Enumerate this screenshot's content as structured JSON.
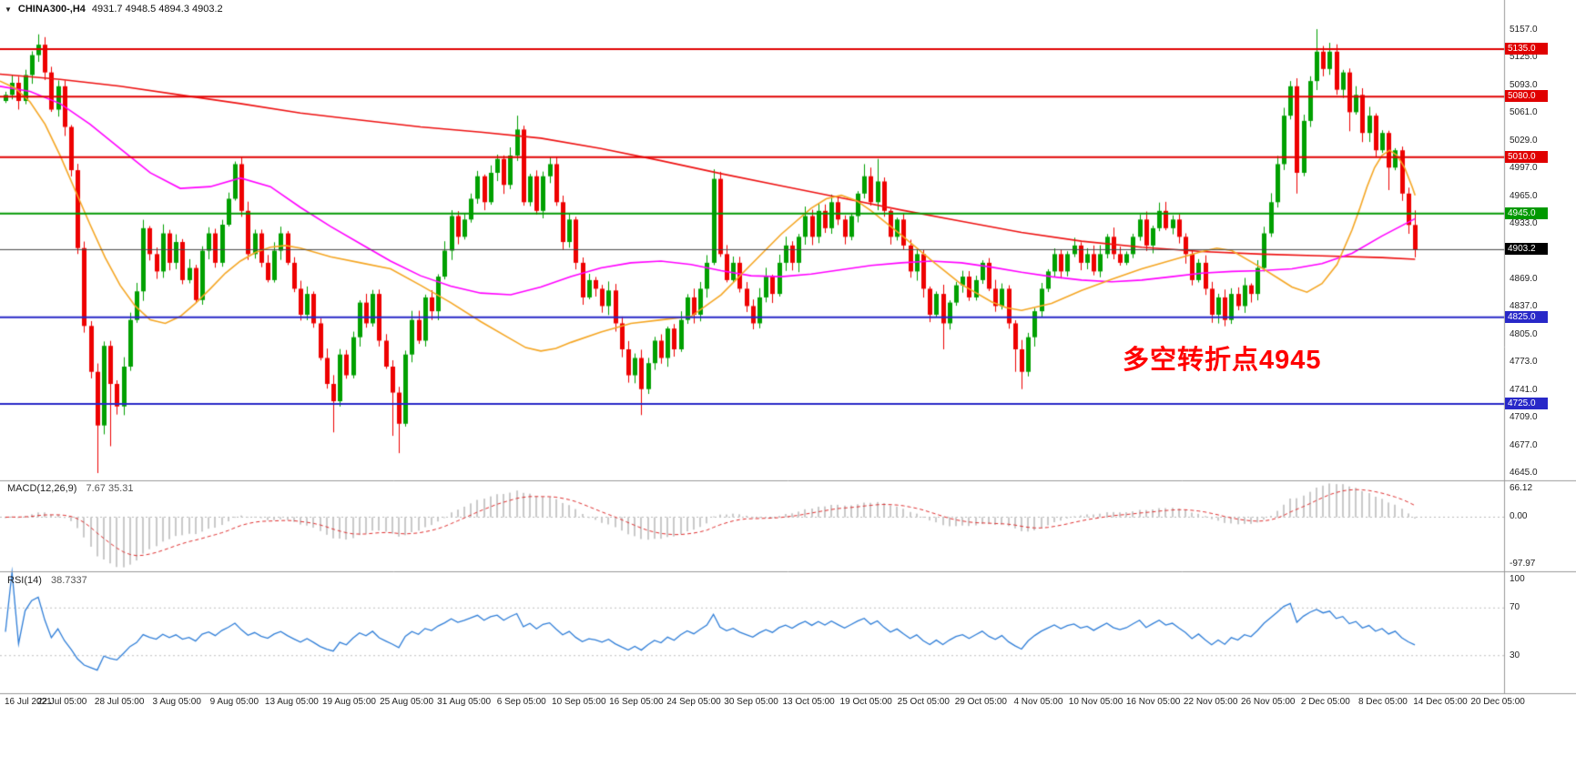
{
  "header": {
    "symbol": "CHINA300-,H4",
    "ohlc": "4931.7 4948.5 4894.3 4903.2"
  },
  "chart_data": {
    "type": "candlestick",
    "symbol": "CHINA300-",
    "timeframe": "H4",
    "current_bar": {
      "open": 4931.7,
      "high": 4948.5,
      "low": 4894.3,
      "close": 4903.2
    },
    "y_axis": {
      "ticks": [
        "5157.0",
        "5125.0",
        "5093.0",
        "5061.0",
        "5029.0",
        "4997.0",
        "4965.0",
        "4933.0",
        "4901.0",
        "4869.0",
        "4837.0",
        "4805.0",
        "4773.0",
        "4741.0",
        "4709.0",
        "4677.0",
        "4645.0"
      ]
    },
    "x_axis": {
      "labels": [
        "16 Jul 2021",
        "22 Jul 05:00",
        "28 Jul 05:00",
        "3 Aug 05:00",
        "9 Aug 05:00",
        "13 Aug 05:00",
        "19 Aug 05:00",
        "25 Aug 05:00",
        "31 Aug 05:00",
        "6 Sep 05:00",
        "10 Sep 05:00",
        "16 Sep 05:00",
        "24 Sep 05:00",
        "30 Sep 05:00",
        "13 Oct 05:00",
        "19 Oct 05:00",
        "25 Oct 05:00",
        "29 Oct 05:00",
        "4 Nov 05:00",
        "10 Nov 05:00",
        "16 Nov 05:00",
        "22 Nov 05:00",
        "26 Nov 05:00",
        "2 Dec 05:00",
        "8 Dec 05:00",
        "14 Dec 05:00",
        "20 Dec 05:00"
      ]
    },
    "horizontal_lines": [
      {
        "value": 5135.0,
        "label": "5135.0",
        "color": "#e00000",
        "type": "resistance"
      },
      {
        "value": 5080.0,
        "label": "5080.0",
        "color": "#e00000",
        "type": "resistance"
      },
      {
        "value": 5010.0,
        "label": "5010.0",
        "color": "#e00000",
        "type": "resistance"
      },
      {
        "value": 4945.0,
        "label": "4945.0",
        "color": "#009900",
        "type": "pivot"
      },
      {
        "value": 4825.0,
        "label": "4825.0",
        "color": "#2828c8",
        "type": "support"
      },
      {
        "value": 4725.0,
        "label": "4725.0",
        "color": "#2828c8",
        "type": "support"
      }
    ],
    "current_price_line": {
      "value": 4903.2,
      "label": "4903.2",
      "line_color": "#444444",
      "badge_color": "#000000"
    },
    "candles": {
      "open_first": 5075,
      "closes": [
        5082,
        5096,
        5075,
        5105,
        5128,
        5140,
        5108,
        5065,
        5092,
        5045,
        4995,
        4905,
        4815,
        4762,
        4700,
        4792,
        4748,
        4722,
        4768,
        4822,
        4855,
        4928,
        4898,
        4878,
        4922,
        4888,
        4912,
        4868,
        4882,
        4845,
        4902,
        4922,
        4888,
        4932,
        4962,
        5002,
        4948,
        4898,
        4922,
        4888,
        4868,
        4902,
        4922,
        4888,
        4858,
        4828,
        4852,
        4818,
        4778,
        4748,
        4728,
        4782,
        4758,
        4802,
        4842,
        4818,
        4852,
        4798,
        4768,
        4738,
        4702,
        4782,
        4822,
        4798,
        4848,
        4832,
        4872,
        4902,
        4942,
        4918,
        4938,
        4962,
        4988,
        4958,
        4992,
        5008,
        4978,
        5012,
        5042,
        4958,
        4988,
        4948,
        4988,
        5002,
        4958,
        4912,
        4938,
        4888,
        4848,
        4868,
        4858,
        4838,
        4856,
        4818,
        4788,
        4758,
        4778,
        4742,
        4772,
        4798,
        4778,
        4812,
        4788,
        4822,
        4848,
        4828,
        4858,
        4888,
        4985,
        4898,
        4868,
        4888,
        4858,
        4838,
        4818,
        4848,
        4872,
        4852,
        4888,
        4908,
        4888,
        4918,
        4942,
        4918,
        4948,
        4928,
        4958,
        4938,
        4918,
        4942,
        4968,
        4988,
        4958,
        4982,
        4948,
        4918,
        4938,
        4908,
        4878,
        4898,
        4858,
        4828,
        4852,
        4818,
        4842,
        4862,
        4872,
        4848,
        4868,
        4888,
        4858,
        4838,
        4858,
        4818,
        4788,
        4762,
        4802,
        4832,
        4858,
        4878,
        4898,
        4878,
        4898,
        4908,
        4888,
        4898,
        4878,
        4898,
        4918,
        4898,
        4888,
        4898,
        4918,
        4938,
        4908,
        4928,
        4948,
        4928,
        4938,
        4918,
        4898,
        4868,
        4888,
        4858,
        4828,
        4848,
        4822,
        4852,
        4838,
        4862,
        4852,
        4882,
        4922,
        4958,
        5002,
        5058,
        5092,
        4992,
        5052,
        5098,
        5132,
        5112,
        5132,
        5088,
        5108,
        5062,
        5082,
        5038,
        5058,
        5018,
        5038,
        4998,
        5018,
        4968,
        4931.7,
        4903.2
      ],
      "wick_overrides": {
        "5": [
          5152,
          null
        ],
        "14": [
          null,
          4645
        ],
        "16": [
          null,
          4676
        ],
        "50": [
          null,
          4692
        ],
        "59": [
          null,
          4688
        ],
        "60": [
          null,
          4668
        ],
        "78": [
          5058,
          null
        ],
        "83": [
          5010,
          null
        ],
        "97": [
          null,
          4712
        ],
        "108": [
          4996,
          null
        ],
        "131": [
          5002,
          null
        ],
        "133": [
          5008,
          null
        ],
        "143": [
          null,
          4788
        ],
        "154": [
          null,
          4762
        ],
        "155": [
          null,
          4742
        ],
        "196": [
          5098,
          null
        ],
        "197": [
          null,
          4968
        ],
        "200": [
          5158,
          null
        ],
        "205": [
          null,
          5040
        ],
        "211": [
          null,
          4972
        ],
        "215": [
          4948.5,
          4894.3
        ]
      }
    },
    "moving_averages": [
      {
        "name": "ma-slow",
        "color": "#ee1111",
        "points": [
          [
            0,
            5106
          ],
          [
            0.04,
            5100
          ],
          [
            0.08,
            5092
          ],
          [
            0.12,
            5082
          ],
          [
            0.16,
            5072
          ],
          [
            0.2,
            5061
          ],
          [
            0.24,
            5053
          ],
          [
            0.28,
            5045
          ],
          [
            0.32,
            5039
          ],
          [
            0.36,
            5032
          ],
          [
            0.4,
            5020
          ],
          [
            0.44,
            5006
          ],
          [
            0.48,
            4991
          ],
          [
            0.52,
            4977
          ],
          [
            0.56,
            4963
          ],
          [
            0.6,
            4949
          ],
          [
            0.64,
            4936
          ],
          [
            0.68,
            4923
          ],
          [
            0.72,
            4913
          ],
          [
            0.76,
            4906
          ],
          [
            0.8,
            4901
          ],
          [
            0.84,
            4898
          ],
          [
            0.88,
            4896
          ],
          [
            0.92,
            4894
          ],
          [
            0.942,
            4892
          ]
        ]
      },
      {
        "name": "ma-medium",
        "color": "#ff00ff",
        "points": [
          [
            0,
            5092
          ],
          [
            0.02,
            5086
          ],
          [
            0.04,
            5072
          ],
          [
            0.06,
            5048
          ],
          [
            0.08,
            5020
          ],
          [
            0.1,
            4992
          ],
          [
            0.12,
            4974
          ],
          [
            0.14,
            4976
          ],
          [
            0.16,
            4986
          ],
          [
            0.18,
            4976
          ],
          [
            0.2,
            4952
          ],
          [
            0.22,
            4930
          ],
          [
            0.24,
            4910
          ],
          [
            0.26,
            4890
          ],
          [
            0.28,
            4873
          ],
          [
            0.3,
            4861
          ],
          [
            0.32,
            4853
          ],
          [
            0.34,
            4851
          ],
          [
            0.36,
            4860
          ],
          [
            0.38,
            4872
          ],
          [
            0.4,
            4882
          ],
          [
            0.42,
            4888
          ],
          [
            0.44,
            4890
          ],
          [
            0.46,
            4886
          ],
          [
            0.48,
            4879
          ],
          [
            0.5,
            4873
          ],
          [
            0.52,
            4872
          ],
          [
            0.54,
            4875
          ],
          [
            0.56,
            4880
          ],
          [
            0.58,
            4885
          ],
          [
            0.6,
            4888
          ],
          [
            0.62,
            4890
          ],
          [
            0.64,
            4888
          ],
          [
            0.66,
            4883
          ],
          [
            0.68,
            4877
          ],
          [
            0.7,
            4872
          ],
          [
            0.72,
            4868
          ],
          [
            0.74,
            4866
          ],
          [
            0.76,
            4868
          ],
          [
            0.78,
            4872
          ],
          [
            0.8,
            4876
          ],
          [
            0.82,
            4878
          ],
          [
            0.84,
            4879
          ],
          [
            0.86,
            4881
          ],
          [
            0.88,
            4887
          ],
          [
            0.9,
            4899
          ],
          [
            0.92,
            4919
          ],
          [
            0.942,
            4939
          ]
        ]
      },
      {
        "name": "ma-fast",
        "color": "#f5a623",
        "points": [
          [
            0,
            5098
          ],
          [
            0.01,
            5090
          ],
          [
            0.02,
            5074
          ],
          [
            0.03,
            5048
          ],
          [
            0.04,
            5012
          ],
          [
            0.05,
            4972
          ],
          [
            0.06,
            4932
          ],
          [
            0.07,
            4894
          ],
          [
            0.08,
            4862
          ],
          [
            0.09,
            4838
          ],
          [
            0.1,
            4822
          ],
          [
            0.11,
            4818
          ],
          [
            0.12,
            4826
          ],
          [
            0.13,
            4841
          ],
          [
            0.14,
            4858
          ],
          [
            0.15,
            4876
          ],
          [
            0.16,
            4890
          ],
          [
            0.17,
            4900
          ],
          [
            0.18,
            4906
          ],
          [
            0.19,
            4908
          ],
          [
            0.2,
            4905
          ],
          [
            0.22,
            4895
          ],
          [
            0.24,
            4888
          ],
          [
            0.26,
            4881
          ],
          [
            0.28,
            4862
          ],
          [
            0.3,
            4842
          ],
          [
            0.32,
            4820
          ],
          [
            0.34,
            4800
          ],
          [
            0.35,
            4790
          ],
          [
            0.36,
            4786
          ],
          [
            0.37,
            4789
          ],
          [
            0.38,
            4796
          ],
          [
            0.4,
            4808
          ],
          [
            0.42,
            4818
          ],
          [
            0.44,
            4822
          ],
          [
            0.46,
            4826
          ],
          [
            0.48,
            4851
          ],
          [
            0.5,
            4886
          ],
          [
            0.52,
            4921
          ],
          [
            0.54,
            4951
          ],
          [
            0.55,
            4962
          ],
          [
            0.56,
            4966
          ],
          [
            0.57,
            4960
          ],
          [
            0.58,
            4948
          ],
          [
            0.6,
            4920
          ],
          [
            0.62,
            4891
          ],
          [
            0.64,
            4863
          ],
          [
            0.66,
            4843
          ],
          [
            0.67,
            4836
          ],
          [
            0.68,
            4833
          ],
          [
            0.7,
            4841
          ],
          [
            0.72,
            4856
          ],
          [
            0.74,
            4869
          ],
          [
            0.76,
            4881
          ],
          [
            0.78,
            4891
          ],
          [
            0.8,
            4901
          ],
          [
            0.81,
            4905
          ],
          [
            0.82,
            4902
          ],
          [
            0.84,
            4882
          ],
          [
            0.85,
            4871
          ],
          [
            0.86,
            4860
          ],
          [
            0.87,
            4854
          ],
          [
            0.88,
            4864
          ],
          [
            0.89,
            4886
          ],
          [
            0.9,
            4926
          ],
          [
            0.905,
            4950
          ],
          [
            0.91,
            4976
          ],
          [
            0.915,
            4998
          ],
          [
            0.92,
            5012
          ],
          [
            0.925,
            5018
          ],
          [
            0.93,
            5012
          ],
          [
            0.935,
            4998
          ],
          [
            0.94,
            4976
          ],
          [
            0.942,
            4966
          ]
        ]
      }
    ],
    "indicators": {
      "macd": {
        "label": "MACD(12,26,9)",
        "values": "7.67 35.31",
        "main_value": 7.67,
        "signal_value": 35.31,
        "axis": [
          "66.12",
          "0.00",
          "-97.97"
        ],
        "range": [
          -97.97,
          66.12
        ],
        "histogram_color": "#c9c9c9",
        "signal_color": "#e03030"
      },
      "rsi": {
        "label": "RSI(14)",
        "value": "38.7337",
        "axis": [
          "100",
          "70",
          "30"
        ],
        "levels": [
          70,
          30
        ],
        "range": [
          0,
          100
        ],
        "line_color": "#2f7ed8"
      }
    },
    "annotation": {
      "text": "多空转折点4945",
      "color": "#ff0000"
    },
    "colors": {
      "up": "#00a000",
      "down": "#ee0000",
      "background": "#ffffff",
      "separator": "#999999"
    }
  }
}
